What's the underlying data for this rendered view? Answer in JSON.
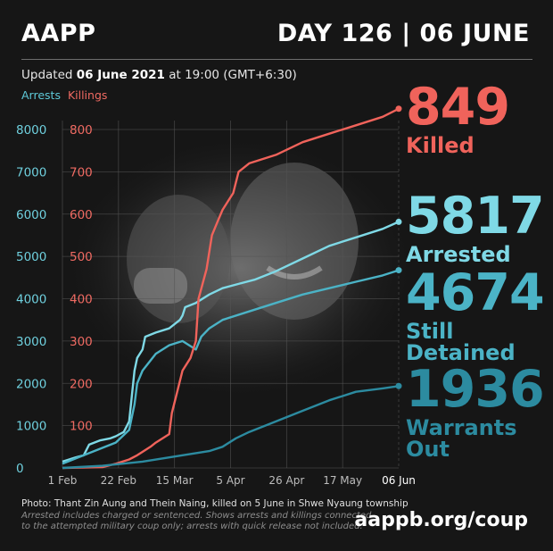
{
  "header": {
    "logo": "AAPP",
    "day": "DAY 126 | 06 JUNE"
  },
  "updated": {
    "prefix": "Updated ",
    "date": "06 June 2021",
    "suffix": " at 19:00 (GMT+6:30)"
  },
  "legend": {
    "arrests": "Arrests",
    "killings": "Killings"
  },
  "stats": {
    "killed": {
      "value": "849",
      "label": "Killed"
    },
    "arrested": {
      "value": "5817",
      "label": "Arrested"
    },
    "detained": {
      "value": "4674",
      "label": "Still Detained"
    },
    "warrants": {
      "value": "1936",
      "label": "Warrants Out"
    }
  },
  "footer": {
    "photo_credit": "Photo: Thant Zin Aung and Thein Naing, killed on 5 June in Shwe Nyaung township",
    "note_line1": "Arrested includes charged or sentenced. Shows arrests and killings connected",
    "note_line2": "to the attempted military coup only; arrests with quick release not included.",
    "site": "aappb.org/coup"
  },
  "colors": {
    "arrests": "#7fd9e6",
    "killings": "#f0635b",
    "detained": "#4bb3c6",
    "warrants": "#2c8ba0"
  },
  "chart_data": {
    "type": "line",
    "x_ticks": [
      "1 Feb",
      "22 Feb",
      "15 Mar",
      "5 Apr",
      "26 Apr",
      "17 May",
      "06 Jun"
    ],
    "x_range": [
      0,
      126
    ],
    "y_left_ticks": [
      "0",
      "1000",
      "2000",
      "3000",
      "4000",
      "5000",
      "6000",
      "7000",
      "8000"
    ],
    "y_left_range": [
      0,
      8000
    ],
    "y_right_ticks": [
      "100",
      "200",
      "300",
      "400",
      "500",
      "600",
      "700",
      "800"
    ],
    "y_right_range": [
      0,
      800
    ],
    "series": [
      {
        "name": "Arrests",
        "axis": "left",
        "color": "#7fd9e6",
        "points": [
          [
            0,
            150
          ],
          [
            5,
            250
          ],
          [
            8,
            300
          ],
          [
            10,
            550
          ],
          [
            14,
            650
          ],
          [
            18,
            700
          ],
          [
            20,
            750
          ],
          [
            23,
            850
          ],
          [
            25,
            1100
          ],
          [
            26,
            1700
          ],
          [
            27,
            2300
          ],
          [
            28,
            2600
          ],
          [
            30,
            2800
          ],
          [
            31,
            3100
          ],
          [
            35,
            3200
          ],
          [
            40,
            3300
          ],
          [
            44,
            3500
          ],
          [
            45,
            3600
          ],
          [
            46,
            3800
          ],
          [
            50,
            3900
          ],
          [
            55,
            4100
          ],
          [
            60,
            4250
          ],
          [
            66,
            4350
          ],
          [
            72,
            4450
          ],
          [
            80,
            4650
          ],
          [
            90,
            4950
          ],
          [
            100,
            5250
          ],
          [
            110,
            5450
          ],
          [
            120,
            5650
          ],
          [
            126,
            5817
          ]
        ]
      },
      {
        "name": "Still Detained",
        "axis": "left",
        "color": "#4bb3c6",
        "points": [
          [
            0,
            100
          ],
          [
            10,
            350
          ],
          [
            20,
            600
          ],
          [
            25,
            900
          ],
          [
            27,
            1500
          ],
          [
            28,
            2000
          ],
          [
            30,
            2300
          ],
          [
            35,
            2700
          ],
          [
            40,
            2900
          ],
          [
            45,
            3000
          ],
          [
            50,
            2800
          ],
          [
            52,
            3100
          ],
          [
            55,
            3300
          ],
          [
            60,
            3500
          ],
          [
            70,
            3700
          ],
          [
            80,
            3900
          ],
          [
            90,
            4100
          ],
          [
            100,
            4250
          ],
          [
            110,
            4400
          ],
          [
            120,
            4550
          ],
          [
            126,
            4674
          ]
        ]
      },
      {
        "name": "Killings",
        "axis": "right",
        "color": "#f0635b",
        "points": [
          [
            0,
            0
          ],
          [
            15,
            2
          ],
          [
            20,
            10
          ],
          [
            25,
            20
          ],
          [
            28,
            30
          ],
          [
            33,
            50
          ],
          [
            35,
            60
          ],
          [
            40,
            80
          ],
          [
            41,
            130
          ],
          [
            43,
            180
          ],
          [
            45,
            230
          ],
          [
            48,
            260
          ],
          [
            50,
            300
          ],
          [
            51,
            400
          ],
          [
            54,
            470
          ],
          [
            56,
            550
          ],
          [
            58,
            580
          ],
          [
            60,
            610
          ],
          [
            64,
            650
          ],
          [
            66,
            700
          ],
          [
            70,
            720
          ],
          [
            80,
            740
          ],
          [
            90,
            770
          ],
          [
            100,
            790
          ],
          [
            110,
            810
          ],
          [
            120,
            830
          ],
          [
            126,
            849
          ]
        ]
      },
      {
        "name": "Warrants Out",
        "axis": "left",
        "color": "#2c8ba0",
        "points": [
          [
            0,
            0
          ],
          [
            15,
            50
          ],
          [
            30,
            150
          ],
          [
            45,
            300
          ],
          [
            55,
            400
          ],
          [
            60,
            500
          ],
          [
            65,
            700
          ],
          [
            70,
            850
          ],
          [
            80,
            1100
          ],
          [
            90,
            1350
          ],
          [
            100,
            1600
          ],
          [
            110,
            1800
          ],
          [
            120,
            1880
          ],
          [
            126,
            1936
          ]
        ]
      }
    ]
  }
}
